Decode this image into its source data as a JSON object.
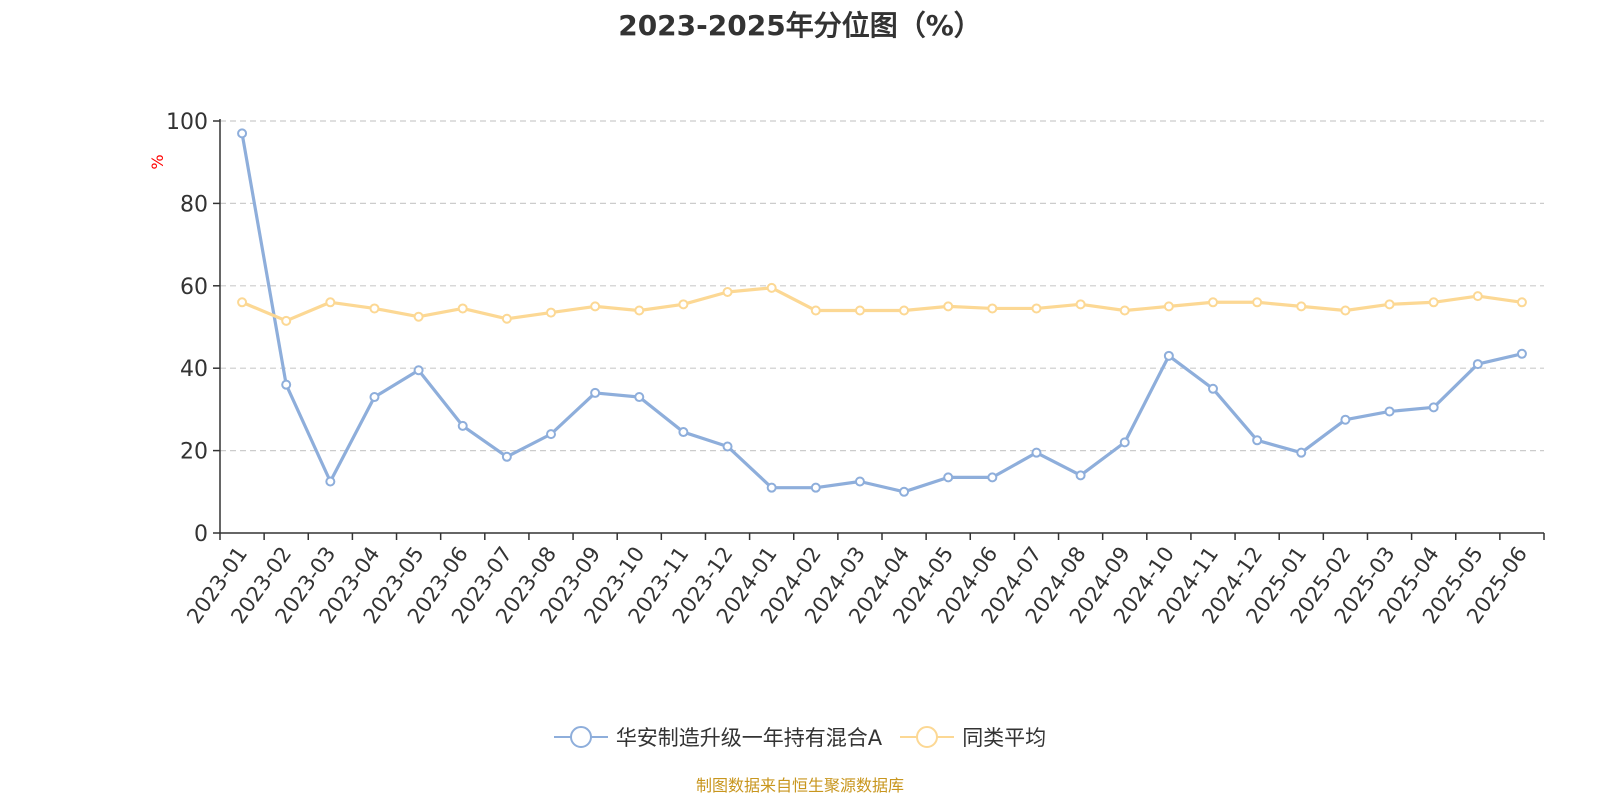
{
  "chart_data": {
    "type": "line",
    "title": "2023-2025年分位图（%）",
    "ylabel": "%",
    "xlabel": "",
    "ylim": [
      0,
      100
    ],
    "yticks": [
      0,
      20,
      40,
      60,
      80,
      100
    ],
    "grid": true,
    "legend_position": "bottom",
    "categories": [
      "2023-01",
      "2023-02",
      "2023-03",
      "2023-04",
      "2023-05",
      "2023-06",
      "2023-07",
      "2023-08",
      "2023-09",
      "2023-10",
      "2023-11",
      "2023-12",
      "2024-01",
      "2024-02",
      "2024-03",
      "2024-04",
      "2024-05",
      "2024-06",
      "2024-07",
      "2024-08",
      "2024-09",
      "2024-10",
      "2024-11",
      "2024-12",
      "2025-01",
      "2025-02",
      "2025-03",
      "2025-04",
      "2025-05",
      "2025-06"
    ],
    "series": [
      {
        "name": "华安制造升级一年持有混合A",
        "color": "#8eaedb",
        "values": [
          97,
          36,
          12.5,
          33,
          39.5,
          26,
          18.5,
          24,
          34,
          33,
          24.5,
          21,
          11,
          11,
          12.5,
          10,
          13.5,
          13.5,
          19.5,
          14,
          22,
          43,
          35,
          22.5,
          19.5,
          27.5,
          29.5,
          30.5,
          41,
          43.5
        ]
      },
      {
        "name": "同类平均",
        "color": "#fcd894",
        "values": [
          56,
          51.5,
          56,
          54.5,
          52.5,
          54.5,
          52,
          53.5,
          55,
          54,
          55.5,
          58.5,
          59.5,
          54,
          54,
          54,
          55,
          54.5,
          54.5,
          55.5,
          54,
          55,
          56,
          56,
          55,
          54,
          55.5,
          56,
          57.5,
          56
        ]
      }
    ]
  },
  "source_note": "制图数据来自恒生聚源数据库",
  "colors": {
    "axis": "#333333",
    "grid": "#cccccc",
    "ylabel": "#ff0000",
    "source": "#c8961e"
  }
}
